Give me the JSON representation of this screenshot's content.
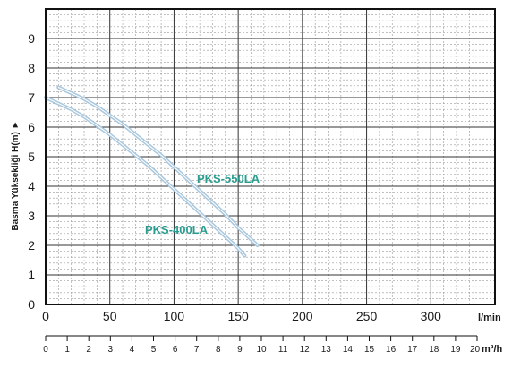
{
  "chart_data": {
    "type": "line",
    "ylabel": "Basma Yüksekliği H(m) ►",
    "xlabel": "l/min",
    "x2label": "m³/h",
    "xlim": [
      0,
      350
    ],
    "ylim": [
      0,
      10
    ],
    "x_ticks": [
      "0",
      "50",
      "100",
      "150",
      "200",
      "250",
      "300"
    ],
    "y_ticks": [
      "0",
      "1",
      "2",
      "3",
      "4",
      "5",
      "6",
      "7",
      "8",
      "9"
    ],
    "x2_ticks": [
      "0",
      "1",
      "2",
      "3",
      "4",
      "5",
      "6",
      "7",
      "8",
      "9",
      "10",
      "11",
      "12",
      "13",
      "14",
      "15",
      "16",
      "17",
      "18",
      "19",
      "20"
    ],
    "grid": true,
    "curve_color": "#a9c7dd",
    "label_color": "#2a9d8f",
    "series": [
      {
        "name": "PKS-550LA",
        "x": [
          10,
          20,
          30,
          40,
          50,
          60,
          70,
          80,
          90,
          100,
          110,
          120,
          130,
          140,
          150,
          160,
          165
        ],
        "y": [
          7.35,
          7.15,
          6.95,
          6.7,
          6.4,
          6.1,
          5.75,
          5.4,
          5.05,
          4.65,
          4.25,
          3.85,
          3.45,
          3.05,
          2.6,
          2.2,
          2.0
        ]
      },
      {
        "name": "PKS-400LA",
        "x": [
          0,
          10,
          20,
          30,
          40,
          50,
          60,
          70,
          80,
          90,
          100,
          110,
          120,
          130,
          140,
          150,
          155
        ],
        "y": [
          7.0,
          6.8,
          6.6,
          6.35,
          6.05,
          5.75,
          5.4,
          5.05,
          4.7,
          4.3,
          3.9,
          3.5,
          3.1,
          2.7,
          2.3,
          1.9,
          1.65
        ]
      }
    ]
  }
}
